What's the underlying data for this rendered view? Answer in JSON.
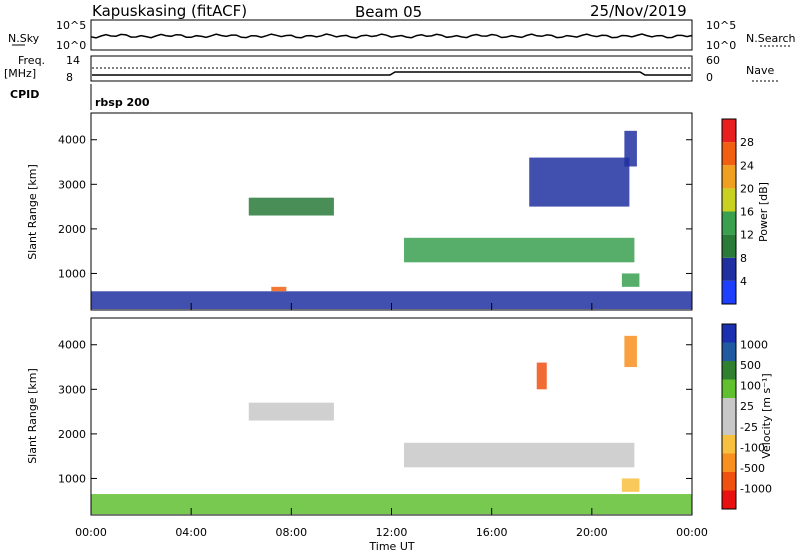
{
  "header": {
    "station": "Kapuskasing (fitACF)",
    "beam": "Beam 05",
    "date": "25/Nov/2019"
  },
  "strip_labels": {
    "nsky": "N.Sky",
    "nsky_top": "10^5",
    "nsky_bottom": "10^0",
    "nsearch": "N.Search",
    "nsearch_top": "10^5",
    "nsearch_bottom": "10^0",
    "freq": "Freq.",
    "freq_unit": "[MHz]",
    "freq_top": "14",
    "freq_bottom": "8",
    "nave": "Nave",
    "nave_top": "60",
    "nave_bottom": "0",
    "cpid": "CPID",
    "cpid_value": "rbsp 200"
  },
  "colors": {
    "power_scale": [
      "#1f3fff",
      "#2030a0",
      "#2a7a3a",
      "#3aa050",
      "#c8d020",
      "#f0a020",
      "#f06010",
      "#e82020"
    ],
    "velocity_scale": [
      "#e81010",
      "#f05010",
      "#f89020",
      "#f8c040",
      "#c8c8c8",
      "#c8c8c8",
      "#60c030",
      "#308030",
      "#205aa0",
      "#1a30b0"
    ]
  },
  "chart_data": [
    {
      "type": "heatmap",
      "title": "",
      "xlabel": "Time UT",
      "ylabel": "Slant Range [km]",
      "xlim": [
        "00:00",
        "24:00"
      ],
      "ylim": [
        180,
        4600
      ],
      "x_ticks": [
        "00:00",
        "04:00",
        "08:00",
        "12:00",
        "16:00",
        "20:00",
        "00:00"
      ],
      "y_ticks": [
        1000,
        2000,
        3000,
        4000
      ],
      "colorbar_label": "Power [dB]",
      "colorbar_ticks": [
        "4",
        "8",
        "12",
        "16",
        "20",
        "24",
        "28"
      ],
      "regions": [
        {
          "t0": 0.0,
          "t1": 24.0,
          "r0": 200,
          "r1": 600,
          "level": 1
        },
        {
          "t0": 7.2,
          "t1": 7.8,
          "r0": 600,
          "r1": 700,
          "level": 6
        },
        {
          "t0": 6.3,
          "t1": 9.7,
          "r0": 2300,
          "r1": 2700,
          "level": 2
        },
        {
          "t0": 12.5,
          "t1": 21.7,
          "r0": 1250,
          "r1": 1800,
          "level": 3
        },
        {
          "t0": 17.5,
          "t1": 21.5,
          "r0": 2500,
          "r1": 3600,
          "level": 1
        },
        {
          "t0": 21.2,
          "t1": 21.9,
          "r0": 700,
          "r1": 1000,
          "level": 3
        },
        {
          "t0": 21.3,
          "t1": 21.8,
          "r0": 3400,
          "r1": 4200,
          "level": 1
        }
      ]
    },
    {
      "type": "heatmap",
      "title": "",
      "xlabel": "Time UT",
      "ylabel": "Slant Range [km]",
      "xlim": [
        "00:00",
        "24:00"
      ],
      "ylim": [
        180,
        4600
      ],
      "x_ticks": [
        "00:00",
        "04:00",
        "08:00",
        "12:00",
        "16:00",
        "20:00",
        "00:00"
      ],
      "y_ticks": [
        1000,
        2000,
        3000,
        4000
      ],
      "colorbar_label": "Velocity [m s⁻¹]",
      "colorbar_ticks": [
        "1000",
        "500",
        "100",
        "25",
        "-25",
        "-100",
        "-500",
        "-1000"
      ],
      "regions": [
        {
          "t0": 0.0,
          "t1": 24.0,
          "r0": 200,
          "r1": 650,
          "level": 6
        },
        {
          "t0": 6.3,
          "t1": 9.7,
          "r0": 2300,
          "r1": 2700,
          "level": 4
        },
        {
          "t0": 12.5,
          "t1": 21.7,
          "r0": 1250,
          "r1": 1800,
          "level": 4
        },
        {
          "t0": 17.8,
          "t1": 18.2,
          "r0": 3000,
          "r1": 3600,
          "level": 1
        },
        {
          "t0": 21.3,
          "t1": 21.8,
          "r0": 3500,
          "r1": 4200,
          "level": 2
        },
        {
          "t0": 21.2,
          "t1": 21.9,
          "r0": 700,
          "r1": 1000,
          "level": 3
        }
      ]
    }
  ]
}
